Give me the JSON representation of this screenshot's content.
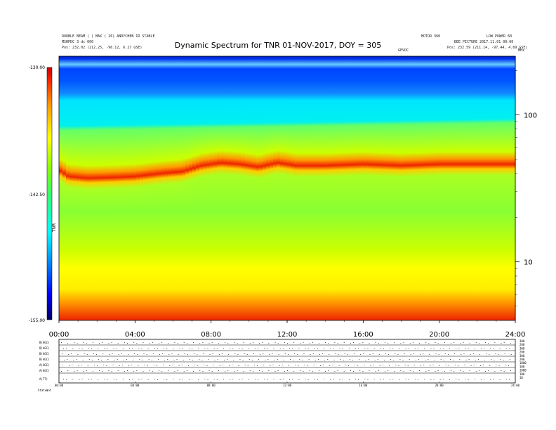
{
  "header": {
    "left_line1": "DOUBLE BEAM ( ) MAX ( 20) ANDYCHEN IR STABLE",
    "left_line2": "MSHPDC 3 dc 000",
    "left_line3": "Pos: 232.02 (212.25, -96.12, 6.27 GSE)",
    "center_small": "MOTOR 360",
    "center_small2": "GEVOC",
    "right_line1": "LOW POWER 60",
    "right_line2": "BEE PICTURE 2017.11.01 00:00",
    "right_line3": "Pos: 232.59 (211.14, -97.44, 4.69 GSE)",
    "right_marker": "MHz"
  },
  "chart_data": {
    "type": "heatmap",
    "title": "Dynamic Spectrum for TNR 01-NOV-2017, DOY = 305",
    "x_ticks": [
      "00:00",
      "04:00",
      "08:00",
      "12:00",
      "16:00",
      "20:00",
      "24:00"
    ],
    "x_range_hours": [
      0,
      24
    ],
    "y_scale": "log",
    "y_range_khz": [
      4,
      250
    ],
    "y_tick_labels": [
      "100",
      "10"
    ],
    "colorbar": {
      "max_label": "-130.00",
      "mid_label": "-142.50",
      "min_label": "-155.00",
      "unit_label": "TNR",
      "range": [
        -155,
        -130
      ]
    },
    "band_peak_khz": [
      {
        "hour": 0.0,
        "khz": 42
      },
      {
        "hour": 0.5,
        "khz": 38
      },
      {
        "hour": 1.5,
        "khz": 37
      },
      {
        "hour": 3.0,
        "khz": 37.5
      },
      {
        "hour": 4.0,
        "khz": 38
      },
      {
        "hour": 5.5,
        "khz": 40
      },
      {
        "hour": 6.5,
        "khz": 41
      },
      {
        "hour": 7.5,
        "khz": 45
      },
      {
        "hour": 8.5,
        "khz": 47
      },
      {
        "hour": 9.5,
        "khz": 46
      },
      {
        "hour": 10.5,
        "khz": 44
      },
      {
        "hour": 11.5,
        "khz": 47
      },
      {
        "hour": 12.5,
        "khz": 45
      },
      {
        "hour": 14.0,
        "khz": 45
      },
      {
        "hour": 16.0,
        "khz": 46
      },
      {
        "hour": 18.0,
        "khz": 45
      },
      {
        "hour": 20.0,
        "khz": 46
      },
      {
        "hour": 22.0,
        "khz": 46
      },
      {
        "hour": 24.0,
        "khz": 46
      }
    ],
    "fade_shoulder_khz_start": 78,
    "fade_shoulder_khz_end": 88,
    "cyan_zone_top_khz": 125,
    "dark_blue_zone_top_khz": 250
  },
  "lower_panel": {
    "row_labels": [
      "B(AGC)",
      "B(AGC)",
      "B(AGC)",
      "B(AGC)",
      "A(AGC)",
      "A(AGC)",
      "A(TT)"
    ],
    "right_labels": [
      "300",
      "200",
      "300",
      "200",
      "300",
      "200",
      "1000",
      "100",
      "1000",
      "100",
      "10"
    ],
    "x_ticks": [
      "00:00",
      "04:00",
      "08:00",
      "12:00",
      "16:00",
      "20:00",
      "24:00"
    ],
    "footer_left": "Status",
    "footer_left2": "ant"
  }
}
